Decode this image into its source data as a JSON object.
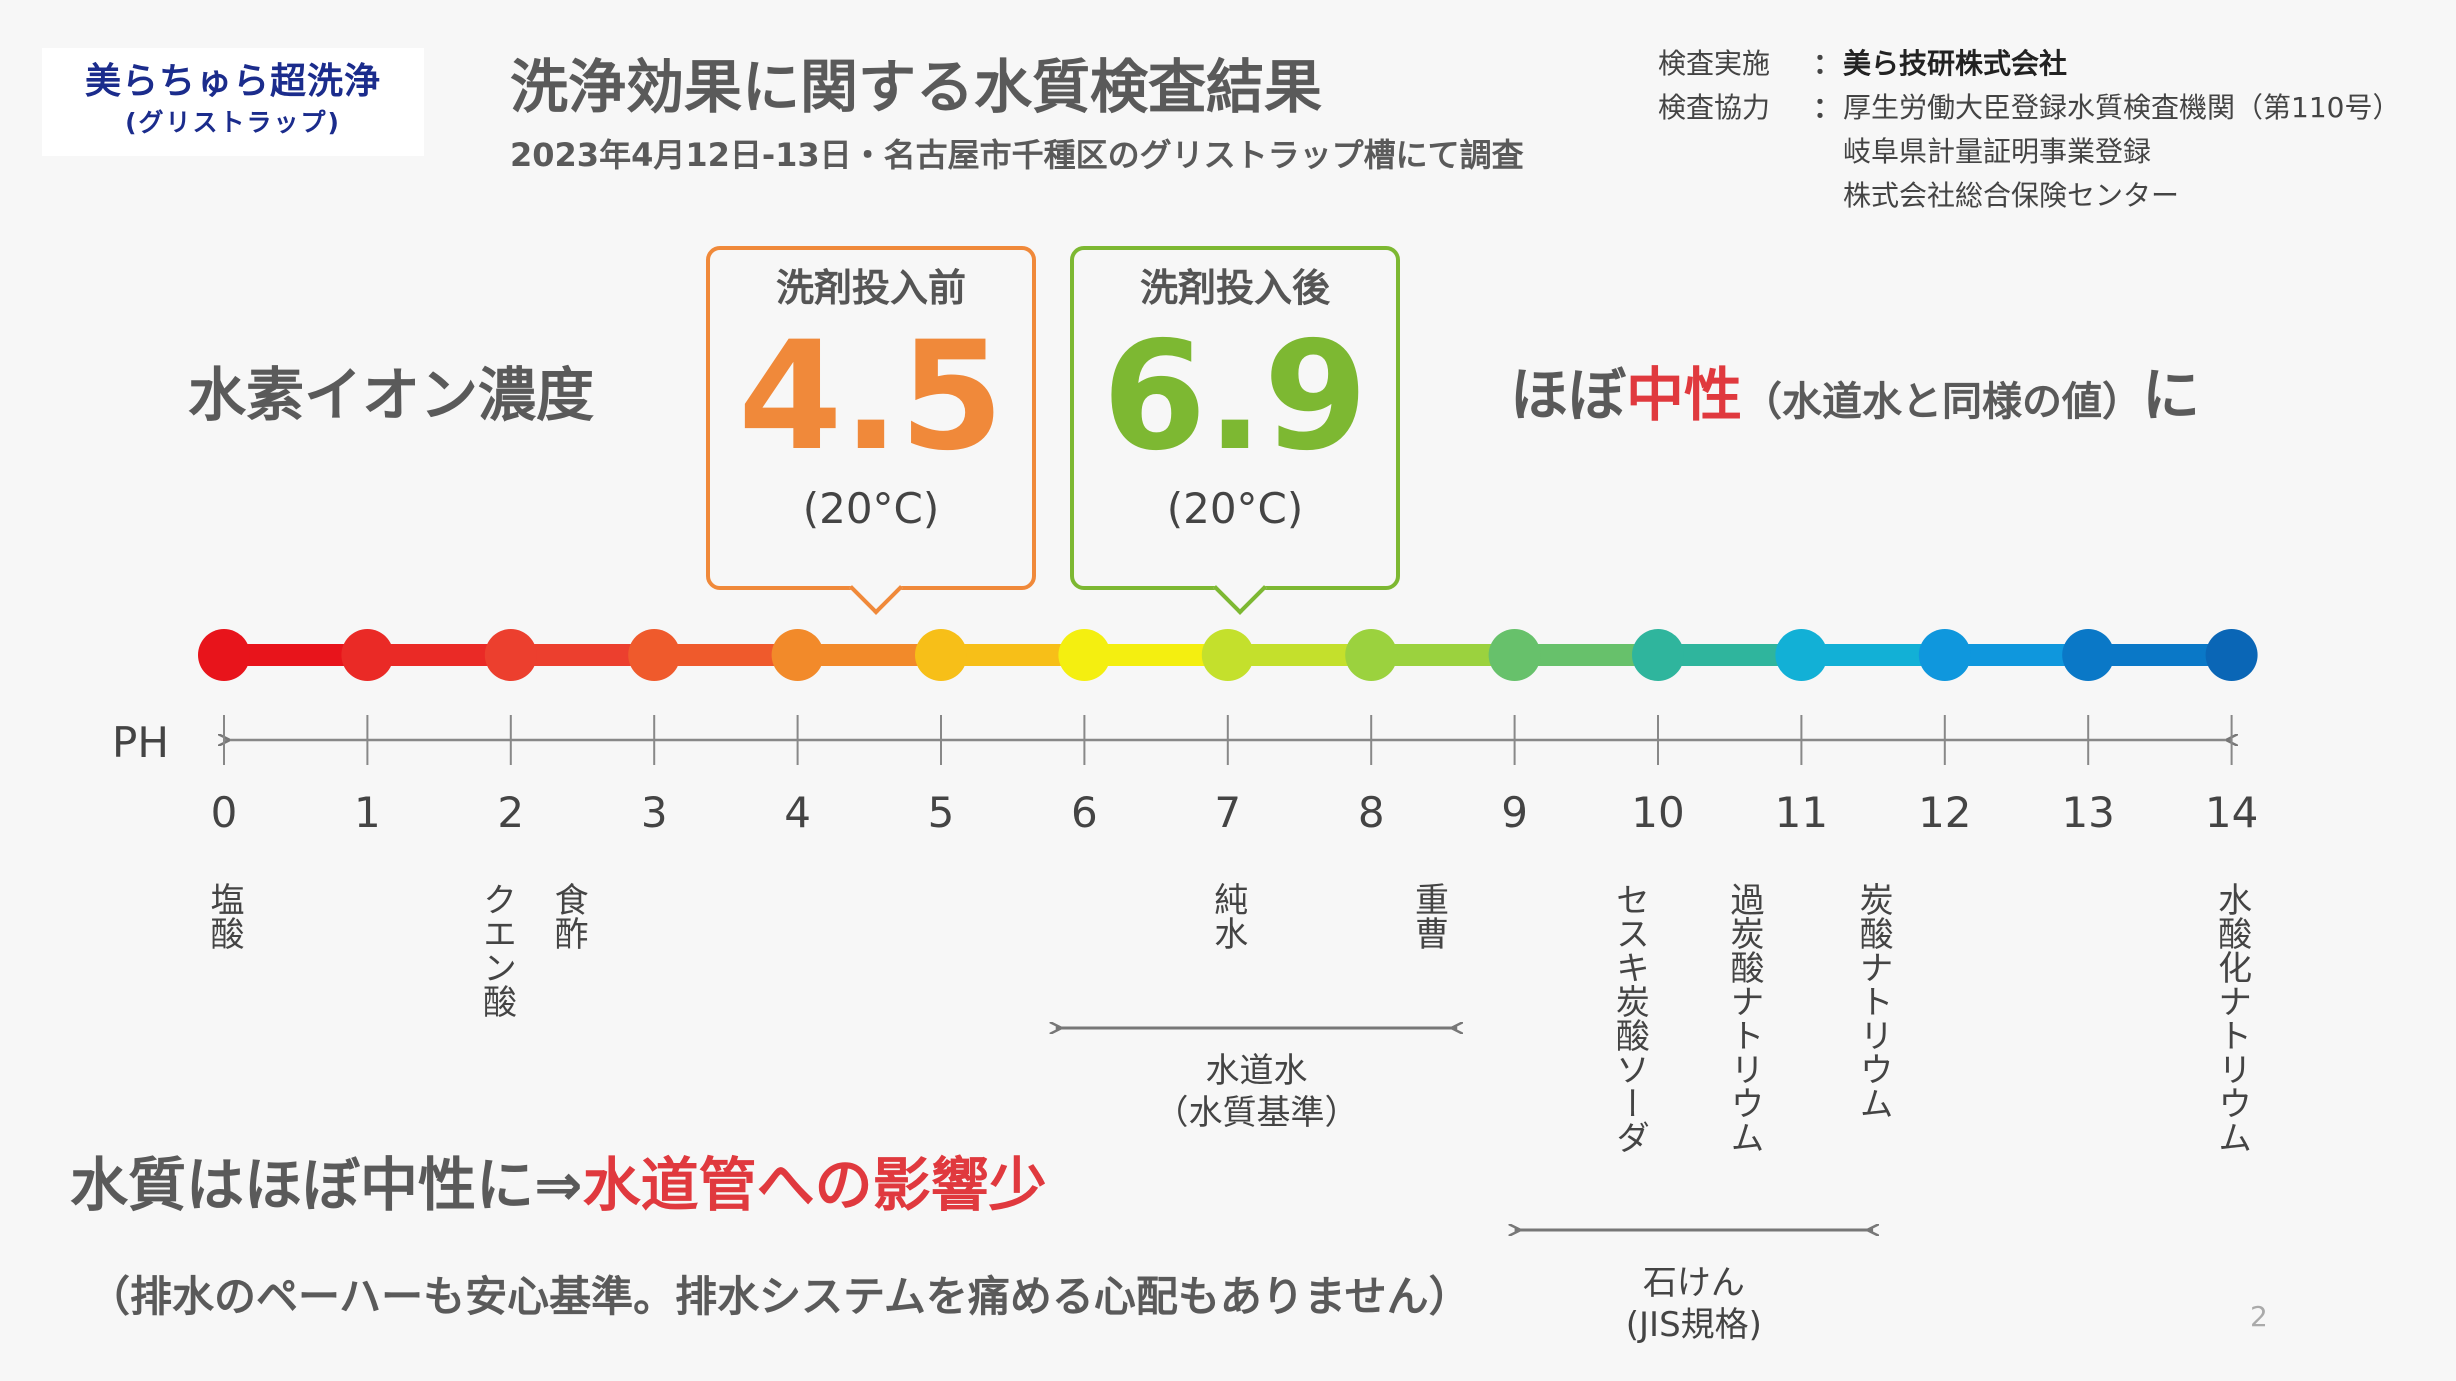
{
  "logo": {
    "line1": "美らちゅら超洗浄",
    "line2": "(グリストラップ)"
  },
  "header": {
    "title": "洗浄効果に関する水質検査結果",
    "subtitle": "2023年4月12日-13日・名古屋市千種区のグリストラップ槽にて調査"
  },
  "info": {
    "conducted_key": "検査実施",
    "colon": "：",
    "conducted_value": "美ら技研株式会社",
    "coop_key": "検査協力",
    "coop_value1": "厚生労働大臣登録水質検査機関（第110号）",
    "coop_value2": "岐阜県計量証明事業登録",
    "coop_value3": "株式会社総合保険センター"
  },
  "ion_label": "水素イオン濃度",
  "result": {
    "prefix": "ほぼ",
    "highlight": "中性",
    "note": "（水道水と同様の値）",
    "suffix": "に"
  },
  "before": {
    "caption": "洗剤投入前",
    "value": "4.5",
    "temp": "(20°C)"
  },
  "after": {
    "caption": "洗剤投入後",
    "value": "6.9",
    "temp": "(20°C)"
  },
  "scale": {
    "axis_label": "PH",
    "ticks": [
      "0",
      "1",
      "2",
      "3",
      "4",
      "5",
      "6",
      "7",
      "8",
      "9",
      "10",
      "11",
      "12",
      "13",
      "14"
    ],
    "colors": [
      "#e8141b",
      "#ea2a26",
      "#ec3f2e",
      "#ef5a2c",
      "#f28a2a",
      "#f7bf18",
      "#f4ef10",
      "#c4e02c",
      "#9bd23e",
      "#67c16b",
      "#2fb59d",
      "#12b0d6",
      "#0f97dd",
      "#0a78c7",
      "#0a66b6"
    ]
  },
  "substances": [
    {
      "name": "塩酸",
      "ph": 0
    },
    {
      "name": "クエン酸",
      "ph": 1.9
    },
    {
      "name": "食酢",
      "ph": 2.4
    },
    {
      "name": "純水",
      "ph": 7
    },
    {
      "name": "重曹",
      "ph": 8.4
    },
    {
      "name": "セスキ炭酸ソーダ",
      "ph": 9.8
    },
    {
      "name": "過炭酸ナトリウム",
      "ph": 10.6
    },
    {
      "name": "炭酸ナトリウム",
      "ph": 11.5
    },
    {
      "name": "水酸化ナトリウム",
      "ph": 14
    }
  ],
  "ranges": {
    "tap": {
      "label1": "水道水",
      "label2": "（水質基準）",
      "from": 5.8,
      "to": 8.6
    },
    "soap": {
      "label1": "石けん",
      "label2": "(JIS規格)",
      "from": 9,
      "to": 11.5
    }
  },
  "conclusion": {
    "main": "水質はほぼ中性に⇒",
    "highlight": "水道管への影響少",
    "sub": "（排水のペーハーも安心基準。排水システムを痛める心配もありません）"
  },
  "page_number": "2"
}
